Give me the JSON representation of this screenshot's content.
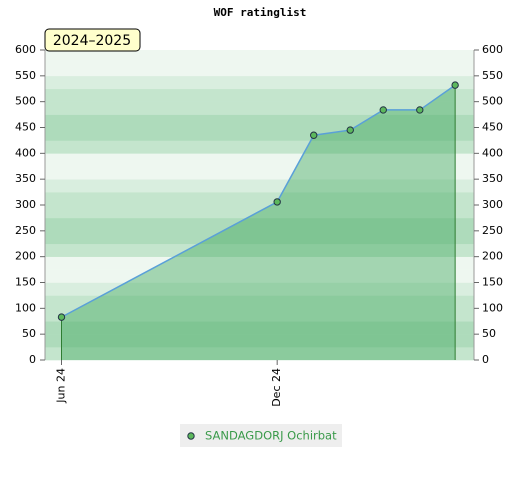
{
  "chart_data": {
    "type": "line",
    "title": "WOF ratinglist",
    "annotation": "2024–2025",
    "x": [
      "2024-06-01",
      "2024-12-01",
      "2025-01-01",
      "2025-02-01",
      "2025-03-01",
      "2025-04-01",
      "2025-05-01"
    ],
    "series": [
      {
        "name": "SANDAGDORJ Ochirbat",
        "color": "#5aa0d8",
        "marker_color": "#5cb85c",
        "values": [
          83,
          306,
          435,
          445,
          484,
          484,
          532
        ]
      }
    ],
    "xlim": [
      "2024-05-18",
      "2025-05-17"
    ],
    "xticks": [
      {
        "value": "2024-06-01",
        "label": "Jun 24"
      },
      {
        "value": "2024-12-01",
        "label": "Dec 24"
      }
    ],
    "ylim": [
      0,
      600
    ],
    "yticks": [
      0,
      50,
      100,
      150,
      200,
      250,
      300,
      350,
      400,
      450,
      500,
      550,
      600
    ],
    "y2lim": [
      0,
      600
    ],
    "y2ticks": [
      0,
      50,
      100,
      150,
      200,
      250,
      300,
      350,
      400,
      450,
      500,
      550,
      600
    ],
    "legend": "bottom"
  }
}
